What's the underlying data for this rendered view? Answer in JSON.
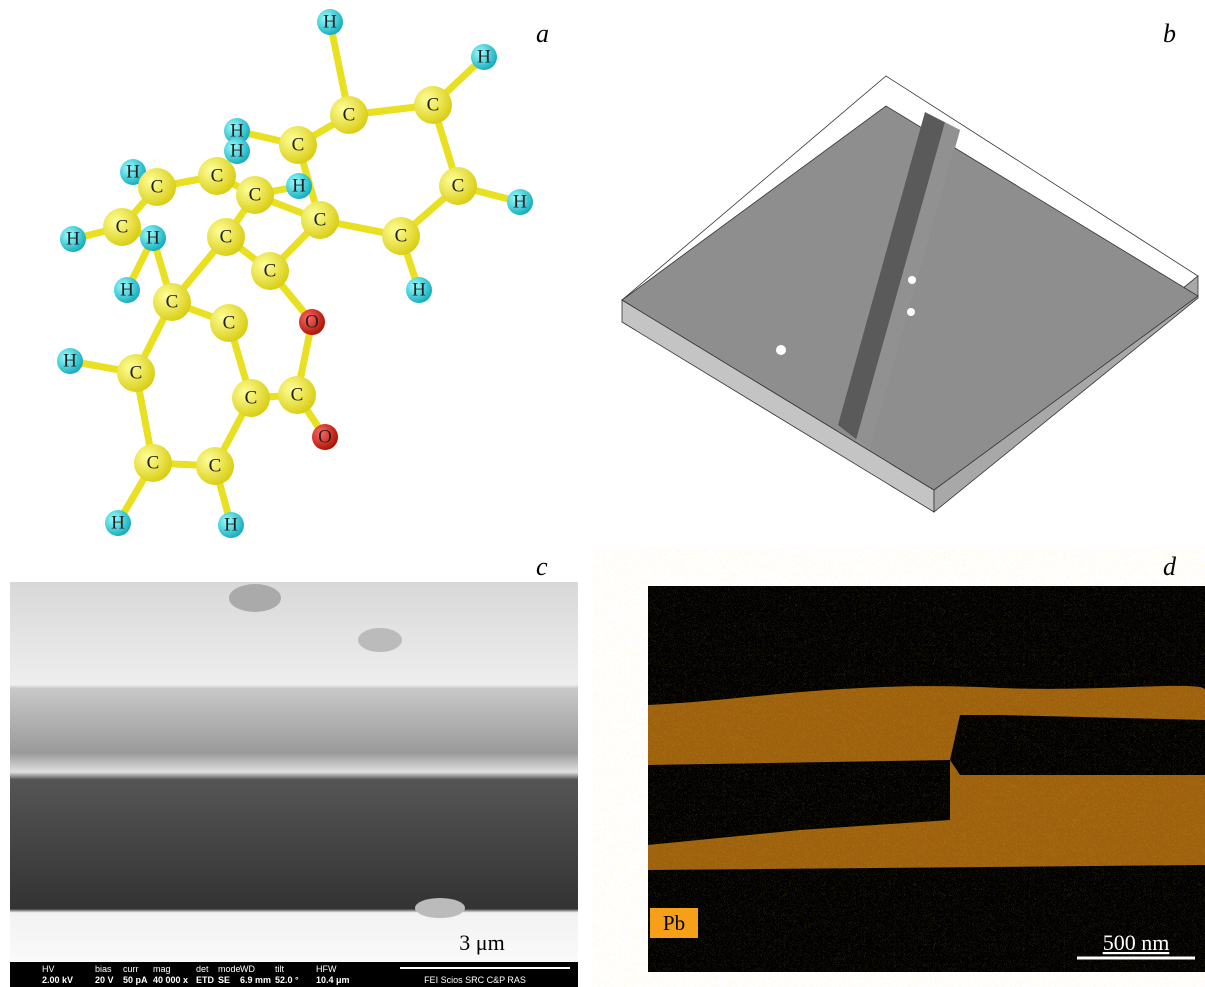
{
  "panels": {
    "a": "a",
    "b": "b",
    "c": "c",
    "d": "d"
  },
  "molecule": {
    "atoms": [
      "H",
      "H",
      "C",
      "C",
      "H",
      "H",
      "C",
      "C",
      "H",
      "H",
      "C",
      "C",
      "C",
      "H",
      "C",
      "C",
      "C",
      "C",
      "H",
      "H",
      "H",
      "C",
      "C",
      "O",
      "H",
      "C",
      "H",
      "C",
      "C",
      "C",
      "O",
      "C",
      "C",
      "H",
      "H"
    ]
  },
  "sem": {
    "scale": "3 μm",
    "info": [
      {
        "label": "HV",
        "value": "2.00 kV"
      },
      {
        "label": "bias",
        "value": "20 V"
      },
      {
        "label": "curr",
        "value": "50 pA"
      },
      {
        "label": "mag",
        "value": "40 000 x"
      },
      {
        "label": "det",
        "value": "ETD"
      },
      {
        "label": "mode",
        "value": "SE"
      },
      {
        "label": "WD",
        "value": "6.9 mm"
      },
      {
        "label": "tilt",
        "value": "52.0 °"
      },
      {
        "label": "HFW",
        "value": "10.4 μm"
      }
    ],
    "footer": "FEI Scios SRC C&P RAS"
  },
  "map": {
    "element": "Pb",
    "scale": "500 nm"
  }
}
